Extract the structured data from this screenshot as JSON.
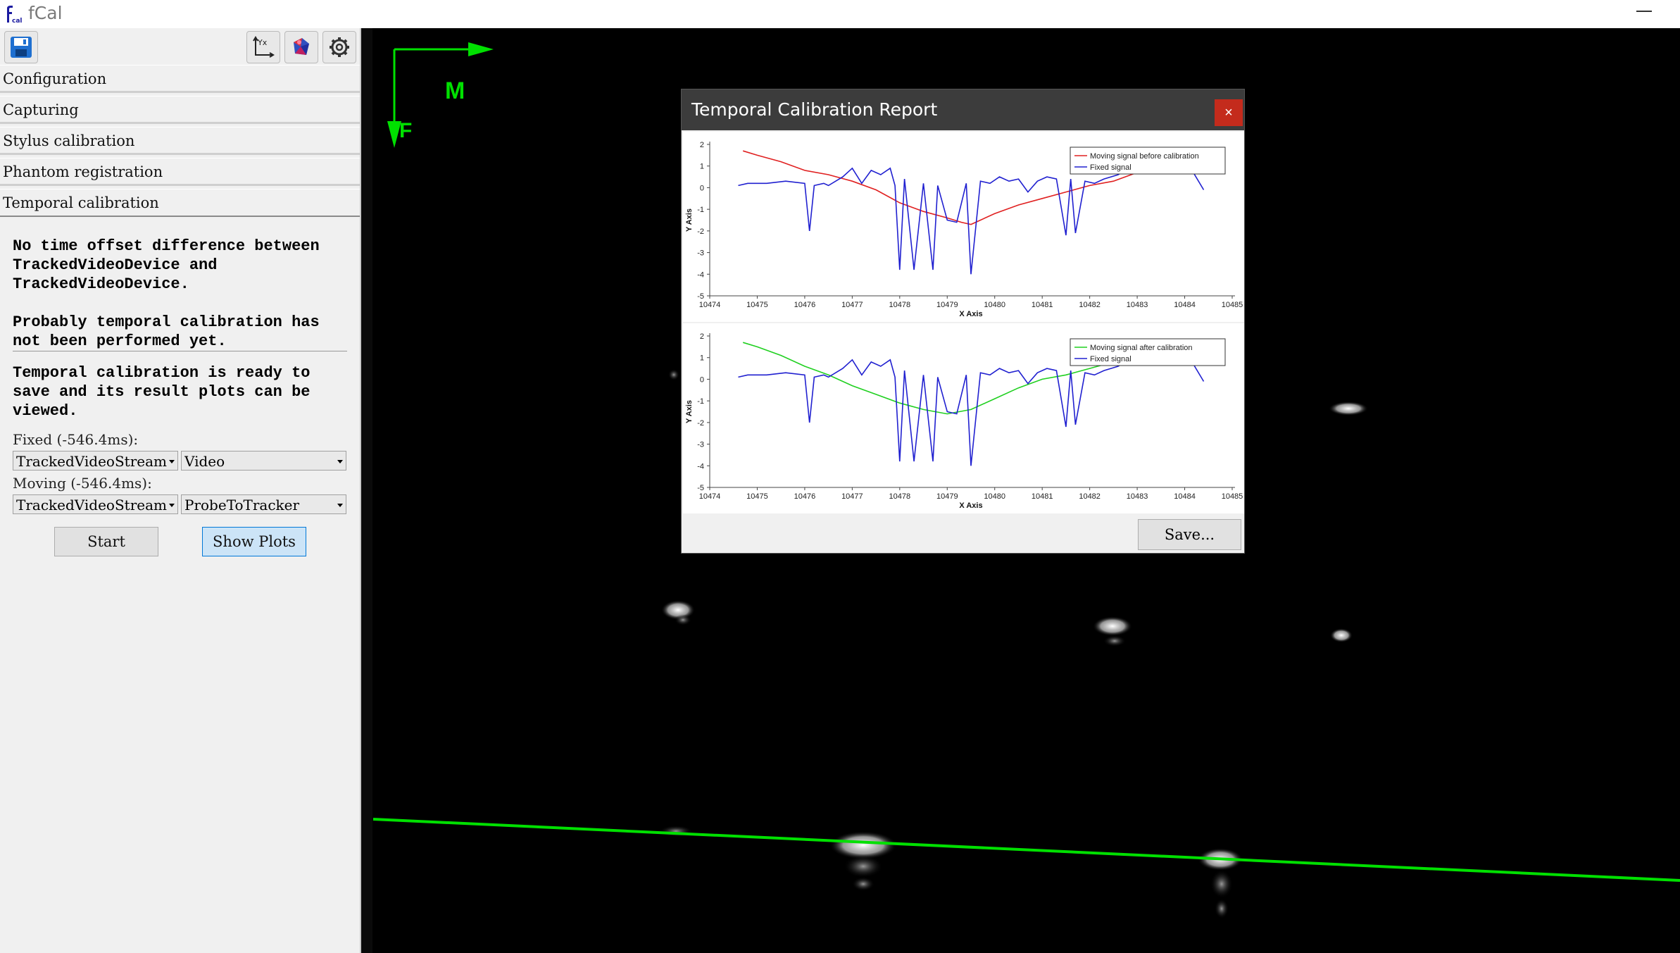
{
  "window": {
    "title": "fCal",
    "logo_text": "cal"
  },
  "toolbar": {
    "save_icon": "floppy-disk-icon",
    "axes_icon": "coordinate-axes-icon",
    "axes_icon_text": "Yx",
    "model_icon": "3d-model-icon",
    "settings_icon": "gear-icon"
  },
  "sections": [
    {
      "label": "Configuration"
    },
    {
      "label": "Capturing"
    },
    {
      "label": "Stylus calibration"
    },
    {
      "label": "Phantom registration"
    },
    {
      "label": "Temporal calibration"
    }
  ],
  "temporal": {
    "status_message": "No time offset difference between TrackedVideoDevice and TrackedVideoDevice.\n\nProbably temporal calibration has not been performed yet.",
    "ready_message": "Temporal calibration is ready to save and its result plots can be viewed.",
    "fixed_label": "Fixed (-546.4ms):",
    "fixed_device": "TrackedVideoStream",
    "fixed_source": "Video",
    "moving_label": "Moving (-546.4ms):",
    "moving_device": "TrackedVideoStream",
    "moving_source": "ProbeToTracker",
    "start_label": "Start",
    "show_plots_label": "Show Plots"
  },
  "viewport": {
    "axis_m_label": "M",
    "axis_f_label": "F",
    "accent": "#00e000"
  },
  "dialog": {
    "title": "Temporal Calibration Report",
    "close_label": "×",
    "save_label": "Save..."
  },
  "chart_data": [
    {
      "type": "line",
      "xlabel": "X Axis",
      "ylabel": "Y Axis",
      "xlim": [
        10474,
        10485
      ],
      "ylim": [
        -5,
        2
      ],
      "xticks": [
        "10474",
        "10475",
        "10476",
        "10477",
        "10478",
        "10479",
        "10480",
        "10481",
        "10482",
        "10483",
        "10484",
        "10485"
      ],
      "yticks": [
        "2",
        "1",
        "0",
        "-1",
        "-2",
        "-3",
        "-4",
        "-5"
      ],
      "legend_position": "top-right",
      "series": [
        {
          "name": "Moving signal before calibration",
          "color": "#e02020",
          "x": [
            10474.7,
            10475.0,
            10475.5,
            10476.0,
            10476.5,
            10477.0,
            10477.5,
            10478.0,
            10478.5,
            10479.0,
            10479.3,
            10479.5,
            10480.0,
            10480.5,
            10481.0,
            10481.5,
            10482.0,
            10482.5,
            10483.0
          ],
          "y": [
            1.7,
            1.5,
            1.2,
            0.8,
            0.6,
            0.3,
            -0.1,
            -0.7,
            -1.1,
            -1.4,
            -1.6,
            -1.7,
            -1.2,
            -0.8,
            -0.5,
            -0.2,
            0.1,
            0.3,
            0.7
          ]
        },
        {
          "name": "Fixed signal",
          "color": "#2020d0",
          "x": [
            10474.6,
            10474.8,
            10475.2,
            10475.6,
            10476.0,
            10476.1,
            10476.2,
            10476.4,
            10476.5,
            10476.8,
            10477.0,
            10477.2,
            10477.4,
            10477.6,
            10477.8,
            10477.9,
            10478.0,
            10478.1,
            10478.3,
            10478.5,
            10478.7,
            10478.8,
            10479.0,
            10479.2,
            10479.4,
            10479.5,
            10479.7,
            10479.9,
            10480.1,
            10480.3,
            10480.5,
            10480.7,
            10480.9,
            10481.1,
            10481.3,
            10481.5,
            10481.6,
            10481.7,
            10481.9,
            10482.1,
            10482.3,
            10482.6,
            10482.9,
            10483.2,
            10483.5,
            10483.8,
            10484.1,
            10484.4
          ],
          "y": [
            0.1,
            0.2,
            0.2,
            0.3,
            0.2,
            -2.0,
            0.1,
            0.2,
            0.1,
            0.5,
            0.9,
            0.2,
            0.8,
            0.6,
            0.9,
            0.1,
            -3.8,
            0.4,
            -3.8,
            0.2,
            -3.8,
            0.1,
            -1.5,
            -1.6,
            0.2,
            -4.0,
            0.3,
            0.2,
            0.5,
            0.3,
            0.4,
            -0.2,
            0.3,
            0.5,
            0.4,
            -2.2,
            0.4,
            -2.1,
            0.3,
            0.2,
            0.4,
            0.6,
            1.0,
            0.8,
            1.1,
            0.9,
            1.0,
            -0.1
          ]
        }
      ]
    },
    {
      "type": "line",
      "xlabel": "X Axis",
      "ylabel": "Y Axis",
      "xlim": [
        10474,
        10485
      ],
      "ylim": [
        -5,
        2
      ],
      "xticks": [
        "10474",
        "10475",
        "10476",
        "10477",
        "10478",
        "10479",
        "10480",
        "10481",
        "10482",
        "10483",
        "10484",
        "10485"
      ],
      "yticks": [
        "2",
        "1",
        "0",
        "-1",
        "-2",
        "-3",
        "-4",
        "-5"
      ],
      "legend_position": "top-right",
      "series": [
        {
          "name": "Moving signal after calibration",
          "color": "#20d020",
          "x": [
            10474.7,
            10475.0,
            10475.5,
            10476.0,
            10476.5,
            10477.0,
            10477.5,
            10478.0,
            10478.5,
            10479.0,
            10479.5,
            10480.0,
            10480.5,
            10481.0,
            10481.5,
            10482.0,
            10482.5
          ],
          "y": [
            1.7,
            1.5,
            1.1,
            0.6,
            0.2,
            -0.3,
            -0.7,
            -1.1,
            -1.4,
            -1.6,
            -1.4,
            -0.9,
            -0.4,
            0.0,
            0.2,
            0.5,
            0.8
          ]
        },
        {
          "name": "Fixed signal",
          "color": "#2020d0",
          "x": [
            10474.6,
            10474.8,
            10475.2,
            10475.6,
            10476.0,
            10476.1,
            10476.2,
            10476.4,
            10476.5,
            10476.8,
            10477.0,
            10477.2,
            10477.4,
            10477.6,
            10477.8,
            10477.9,
            10478.0,
            10478.1,
            10478.3,
            10478.5,
            10478.7,
            10478.8,
            10479.0,
            10479.2,
            10479.4,
            10479.5,
            10479.7,
            10479.9,
            10480.1,
            10480.3,
            10480.5,
            10480.7,
            10480.9,
            10481.1,
            10481.3,
            10481.5,
            10481.6,
            10481.7,
            10481.9,
            10482.1,
            10482.3,
            10482.6,
            10482.9,
            10483.2,
            10483.5,
            10483.8,
            10484.1,
            10484.4
          ],
          "y": [
            0.1,
            0.2,
            0.2,
            0.3,
            0.2,
            -2.0,
            0.1,
            0.2,
            0.1,
            0.5,
            0.9,
            0.2,
            0.8,
            0.6,
            0.9,
            0.1,
            -3.8,
            0.4,
            -3.8,
            0.2,
            -3.8,
            0.1,
            -1.5,
            -1.6,
            0.2,
            -4.0,
            0.3,
            0.2,
            0.5,
            0.3,
            0.4,
            -0.2,
            0.3,
            0.5,
            0.4,
            -2.2,
            0.4,
            -2.1,
            0.3,
            0.2,
            0.4,
            0.6,
            1.0,
            0.8,
            1.1,
            0.9,
            1.0,
            -0.1
          ]
        }
      ]
    }
  ]
}
